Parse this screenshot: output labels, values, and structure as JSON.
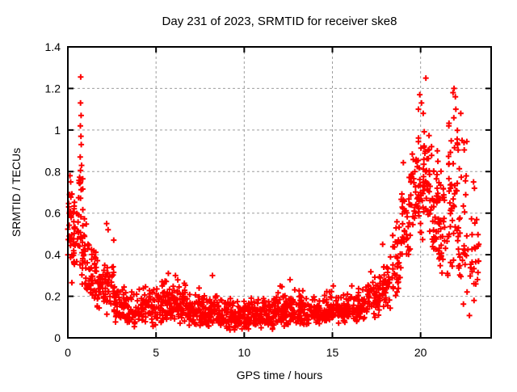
{
  "window": {
    "background": "#ffffff"
  },
  "chart_data": {
    "type": "scatter",
    "title": "Day 231 of 2023, SRMTID for receiver ske8",
    "xlabel": "GPS time / hours",
    "ylabel": "SRMTID / TECUs",
    "xlim": [
      0,
      24
    ],
    "ylim": [
      0,
      1.4
    ],
    "xticks": [
      0,
      5,
      10,
      15,
      20
    ],
    "yticks": [
      0,
      0.2,
      0.4,
      0.6,
      0.8,
      1,
      1.2,
      1.4
    ],
    "grid": true,
    "grid_style": "dashed",
    "legend": "none",
    "marker": {
      "shape": "plus",
      "color": "#ff0000",
      "size": 7,
      "stroke_width": 2
    },
    "colors": {
      "points": "#ff0000",
      "grid": "#9e9e9e",
      "axis": "#000000",
      "background": "#ffffff"
    },
    "description": "Dense diurnal scatter: high SRMTID values (0.2-1.26 TECU) in hours 0-1.5, low quiet band (~0.03-0.3 TECU) from hours 2-17, rising activity after hour 18 with twin peaks near hour 20 (to 1.25) and hour 22 (to 1.2), data ending near hour 23.3",
    "cluster_bins_format": [
      "x_start",
      "x_end",
      "n_points",
      "y_min",
      "y_mode",
      "y_max"
    ],
    "cluster_bins": [
      [
        0.0,
        0.35,
        22,
        0.2,
        0.45,
        0.8
      ],
      [
        0.05,
        0.45,
        10,
        0.55,
        0.62,
        0.78
      ],
      [
        0.3,
        0.75,
        30,
        0.25,
        0.45,
        0.68
      ],
      [
        0.58,
        0.85,
        12,
        0.6,
        0.75,
        1.05
      ],
      [
        0.75,
        1.15,
        30,
        0.22,
        0.4,
        0.6
      ],
      [
        1.1,
        1.6,
        35,
        0.17,
        0.3,
        0.47
      ],
      [
        1.6,
        2.1,
        35,
        0.12,
        0.24,
        0.4
      ],
      [
        2.1,
        2.65,
        35,
        0.1,
        0.2,
        0.38
      ],
      [
        2.6,
        3.2,
        40,
        0.07,
        0.15,
        0.28
      ],
      [
        3.2,
        4.1,
        52,
        0.05,
        0.12,
        0.24
      ],
      [
        4.1,
        5.0,
        58,
        0.05,
        0.12,
        0.26
      ],
      [
        5.0,
        6.0,
        75,
        0.05,
        0.13,
        0.3
      ],
      [
        6.0,
        7.0,
        75,
        0.05,
        0.12,
        0.28
      ],
      [
        7.0,
        8.0,
        75,
        0.04,
        0.11,
        0.25
      ],
      [
        8.0,
        9.0,
        75,
        0.04,
        0.1,
        0.22
      ],
      [
        9.0,
        10.0,
        78,
        0.03,
        0.1,
        0.2
      ],
      [
        10.0,
        11.0,
        78,
        0.03,
        0.09,
        0.2
      ],
      [
        11.0,
        12.0,
        78,
        0.04,
        0.1,
        0.22
      ],
      [
        12.0,
        13.0,
        75,
        0.05,
        0.11,
        0.27
      ],
      [
        13.0,
        14.0,
        75,
        0.05,
        0.11,
        0.24
      ],
      [
        14.0,
        15.0,
        70,
        0.05,
        0.12,
        0.25
      ],
      [
        15.0,
        16.0,
        68,
        0.06,
        0.12,
        0.24
      ],
      [
        16.0,
        17.0,
        62,
        0.07,
        0.14,
        0.27
      ],
      [
        17.0,
        17.7,
        45,
        0.09,
        0.17,
        0.33
      ],
      [
        17.7,
        18.3,
        38,
        0.12,
        0.22,
        0.45
      ],
      [
        18.3,
        18.9,
        36,
        0.17,
        0.3,
        0.62
      ],
      [
        18.9,
        19.4,
        36,
        0.25,
        0.45,
        0.85
      ],
      [
        19.4,
        20.0,
        46,
        0.35,
        0.62,
        1.05
      ],
      [
        20.0,
        20.5,
        42,
        0.45,
        0.72,
        1.17
      ],
      [
        20.5,
        21.0,
        40,
        0.35,
        0.58,
        0.95
      ],
      [
        21.0,
        21.5,
        35,
        0.25,
        0.45,
        0.9
      ],
      [
        21.5,
        22.1,
        46,
        0.22,
        0.55,
        1.16
      ],
      [
        22.1,
        22.65,
        36,
        0.15,
        0.42,
        1.05
      ],
      [
        22.6,
        23.3,
        26,
        0.1,
        0.28,
        0.75
      ]
    ],
    "outlier_points": [
      [
        0.73,
        1.255
      ],
      [
        0.72,
        1.13
      ],
      [
        0.75,
        1.07
      ],
      [
        0.71,
        1.02
      ],
      [
        0.74,
        0.97
      ],
      [
        0.76,
        0.93
      ],
      [
        0.7,
        0.87
      ],
      [
        0.78,
        0.83
      ],
      [
        0.12,
        0.78
      ],
      [
        0.16,
        0.75
      ],
      [
        0.05,
        0.63
      ],
      [
        0.22,
        0.6
      ],
      [
        2.2,
        0.55
      ],
      [
        2.28,
        0.52
      ],
      [
        2.6,
        0.47
      ],
      [
        5.7,
        0.31
      ],
      [
        6.1,
        0.3
      ],
      [
        8.2,
        0.3
      ],
      [
        12.6,
        0.28
      ],
      [
        15.05,
        0.25
      ],
      [
        17.85,
        0.45
      ],
      [
        20.3,
        1.25
      ],
      [
        19.95,
        1.17
      ],
      [
        20.05,
        1.13
      ],
      [
        19.88,
        1.1
      ],
      [
        20.15,
        1.08
      ],
      [
        21.9,
        1.2
      ],
      [
        21.84,
        1.18
      ],
      [
        21.97,
        1.16
      ],
      [
        22.0,
        1.1
      ],
      [
        22.28,
        1.08
      ],
      [
        21.6,
        1.02
      ],
      [
        22.35,
        0.95
      ],
      [
        20.62,
        0.92
      ],
      [
        20.95,
        0.9
      ],
      [
        23.0,
        0.75
      ],
      [
        23.05,
        0.72
      ],
      [
        23.3,
        0.45
      ]
    ]
  }
}
